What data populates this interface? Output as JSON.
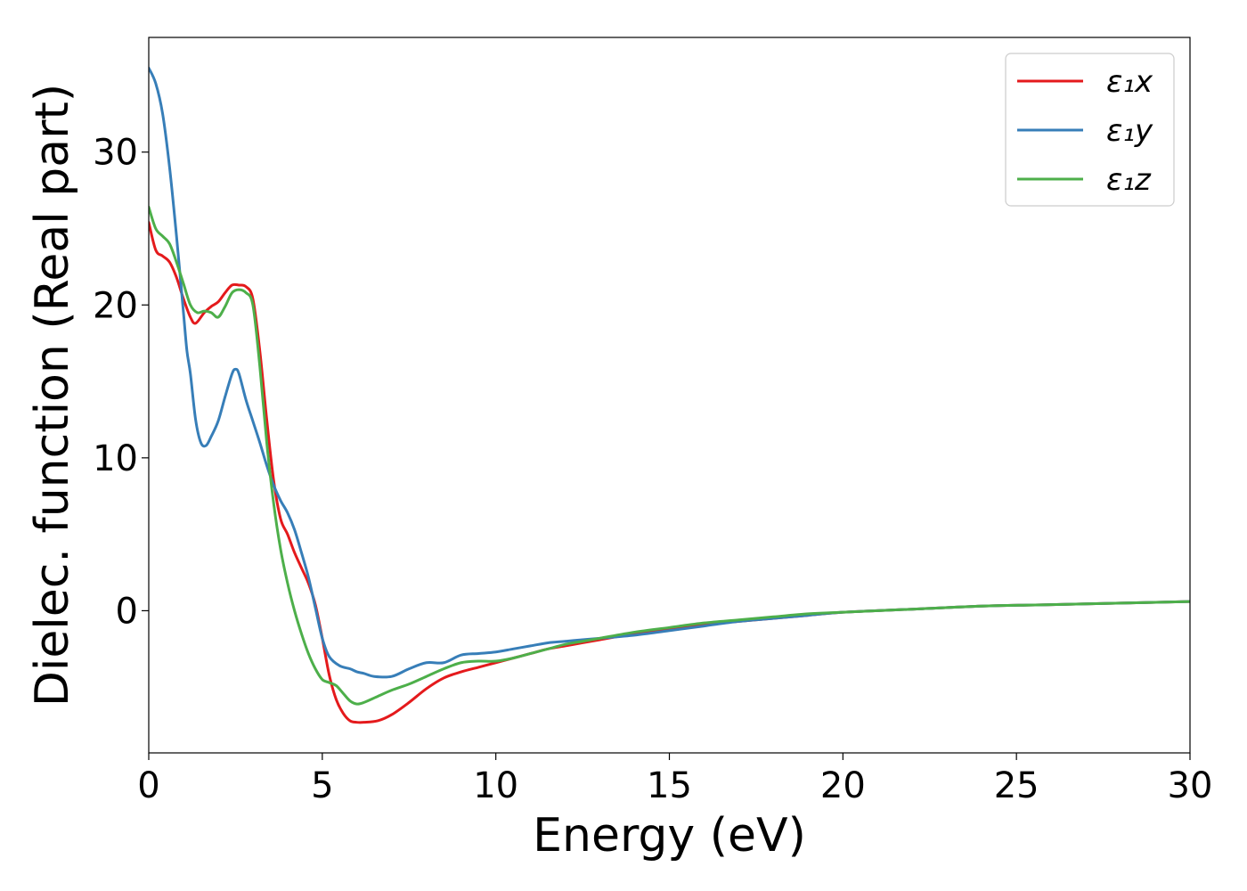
{
  "chart_data": {
    "type": "line",
    "xlabel": "Energy (eV)",
    "ylabel": "Dielec. function (Real part)",
    "xlim": [
      0,
      30
    ],
    "ylim": [
      -9.3,
      37.5
    ],
    "xticks": [
      0,
      5,
      10,
      15,
      20,
      25,
      30
    ],
    "yticks": [
      0,
      10,
      20,
      30
    ],
    "grid": false,
    "legend_position": "top-right",
    "series": [
      {
        "name": "ε₁x",
        "color": "#e41a1c",
        "x": [
          0,
          0.2,
          0.4,
          0.6,
          0.8,
          1.0,
          1.2,
          1.35,
          1.6,
          1.8,
          2.0,
          2.2,
          2.4,
          2.6,
          2.8,
          3.0,
          3.2,
          3.4,
          3.6,
          3.8,
          4.0,
          4.2,
          4.4,
          4.6,
          4.8,
          5.0,
          5.2,
          5.4,
          5.6,
          5.8,
          6.0,
          6.2,
          6.6,
          7.0,
          7.5,
          8.0,
          8.5,
          9.0,
          9.5,
          10.0,
          10.5,
          11.0,
          11.5,
          12.0,
          12.5,
          13.0,
          14.0,
          15.0,
          16.0,
          17.0,
          18.0,
          19.0,
          20.0,
          22.0,
          24.0,
          26.0,
          28.0,
          30.0
        ],
        "y": [
          25.4,
          23.6,
          23.2,
          22.8,
          21.8,
          20.4,
          19.2,
          18.8,
          19.5,
          19.9,
          20.2,
          20.8,
          21.3,
          21.3,
          21.2,
          20.4,
          17.0,
          12.5,
          8.5,
          6.0,
          5.0,
          3.8,
          2.8,
          1.8,
          0.4,
          -1.8,
          -4.2,
          -5.8,
          -6.7,
          -7.2,
          -7.3,
          -7.3,
          -7.2,
          -6.8,
          -6.0,
          -5.1,
          -4.4,
          -4.0,
          -3.7,
          -3.4,
          -3.1,
          -2.8,
          -2.5,
          -2.3,
          -2.1,
          -1.9,
          -1.5,
          -1.2,
          -0.9,
          -0.7,
          -0.5,
          -0.3,
          -0.1,
          0.1,
          0.3,
          0.4,
          0.5,
          0.6
        ]
      },
      {
        "name": "ε₁y",
        "color": "#377eb8",
        "x": [
          0,
          0.2,
          0.4,
          0.6,
          0.8,
          1.0,
          1.1,
          1.2,
          1.35,
          1.5,
          1.65,
          1.8,
          2.0,
          2.2,
          2.4,
          2.5,
          2.6,
          2.8,
          3.0,
          3.2,
          3.4,
          3.6,
          3.8,
          4.0,
          4.2,
          4.4,
          4.6,
          4.8,
          5.0,
          5.2,
          5.5,
          5.8,
          6.0,
          6.2,
          6.5,
          7.0,
          7.5,
          8.0,
          8.5,
          9.0,
          9.5,
          10.0,
          10.5,
          11.0,
          11.5,
          12.0,
          12.5,
          13.0,
          14.0,
          15.0,
          16.0,
          17.0,
          18.0,
          19.0,
          20.0,
          22.0,
          24.0,
          26.0,
          28.0,
          30.0
        ],
        "y": [
          35.5,
          34.5,
          32.5,
          29.0,
          24.5,
          19.5,
          17.0,
          15.5,
          12.5,
          11.0,
          10.8,
          11.4,
          12.4,
          14.0,
          15.5,
          15.8,
          15.5,
          13.8,
          12.4,
          11.0,
          9.5,
          8.2,
          7.2,
          6.4,
          5.3,
          3.8,
          2.2,
          0.2,
          -1.8,
          -3.0,
          -3.6,
          -3.8,
          -4.0,
          -4.1,
          -4.3,
          -4.3,
          -3.8,
          -3.4,
          -3.4,
          -2.9,
          -2.8,
          -2.7,
          -2.5,
          -2.3,
          -2.1,
          -2.0,
          -1.9,
          -1.8,
          -1.6,
          -1.3,
          -1.0,
          -0.7,
          -0.5,
          -0.3,
          -0.1,
          0.1,
          0.3,
          0.4,
          0.5,
          0.6
        ]
      },
      {
        "name": "ε₁z",
        "color": "#4daf4a",
        "x": [
          0,
          0.2,
          0.4,
          0.6,
          0.8,
          1.0,
          1.2,
          1.4,
          1.6,
          1.8,
          2.0,
          2.2,
          2.4,
          2.6,
          2.8,
          3.0,
          3.2,
          3.4,
          3.6,
          3.8,
          4.0,
          4.2,
          4.4,
          4.6,
          4.8,
          5.0,
          5.2,
          5.4,
          5.6,
          5.8,
          6.0,
          6.2,
          6.6,
          7.0,
          7.5,
          8.0,
          8.5,
          9.0,
          9.5,
          10.0,
          10.5,
          11.0,
          11.5,
          12.0,
          12.5,
          13.0,
          14.0,
          15.0,
          16.0,
          17.0,
          18.0,
          19.0,
          20.0,
          22.0,
          24.0,
          26.0,
          28.0,
          30.0
        ],
        "y": [
          26.4,
          25.0,
          24.5,
          24.0,
          22.8,
          21.4,
          20.0,
          19.5,
          19.6,
          19.5,
          19.2,
          19.9,
          20.8,
          21.0,
          20.8,
          20.0,
          16.0,
          11.0,
          7.0,
          4.0,
          1.8,
          0.0,
          -1.5,
          -2.8,
          -3.8,
          -4.5,
          -4.7,
          -4.9,
          -5.4,
          -5.9,
          -6.1,
          -6.0,
          -5.6,
          -5.2,
          -4.8,
          -4.3,
          -3.8,
          -3.4,
          -3.3,
          -3.3,
          -3.1,
          -2.8,
          -2.5,
          -2.2,
          -2.0,
          -1.8,
          -1.4,
          -1.1,
          -0.8,
          -0.6,
          -0.4,
          -0.2,
          -0.1,
          0.1,
          0.3,
          0.4,
          0.5,
          0.6
        ]
      }
    ]
  }
}
